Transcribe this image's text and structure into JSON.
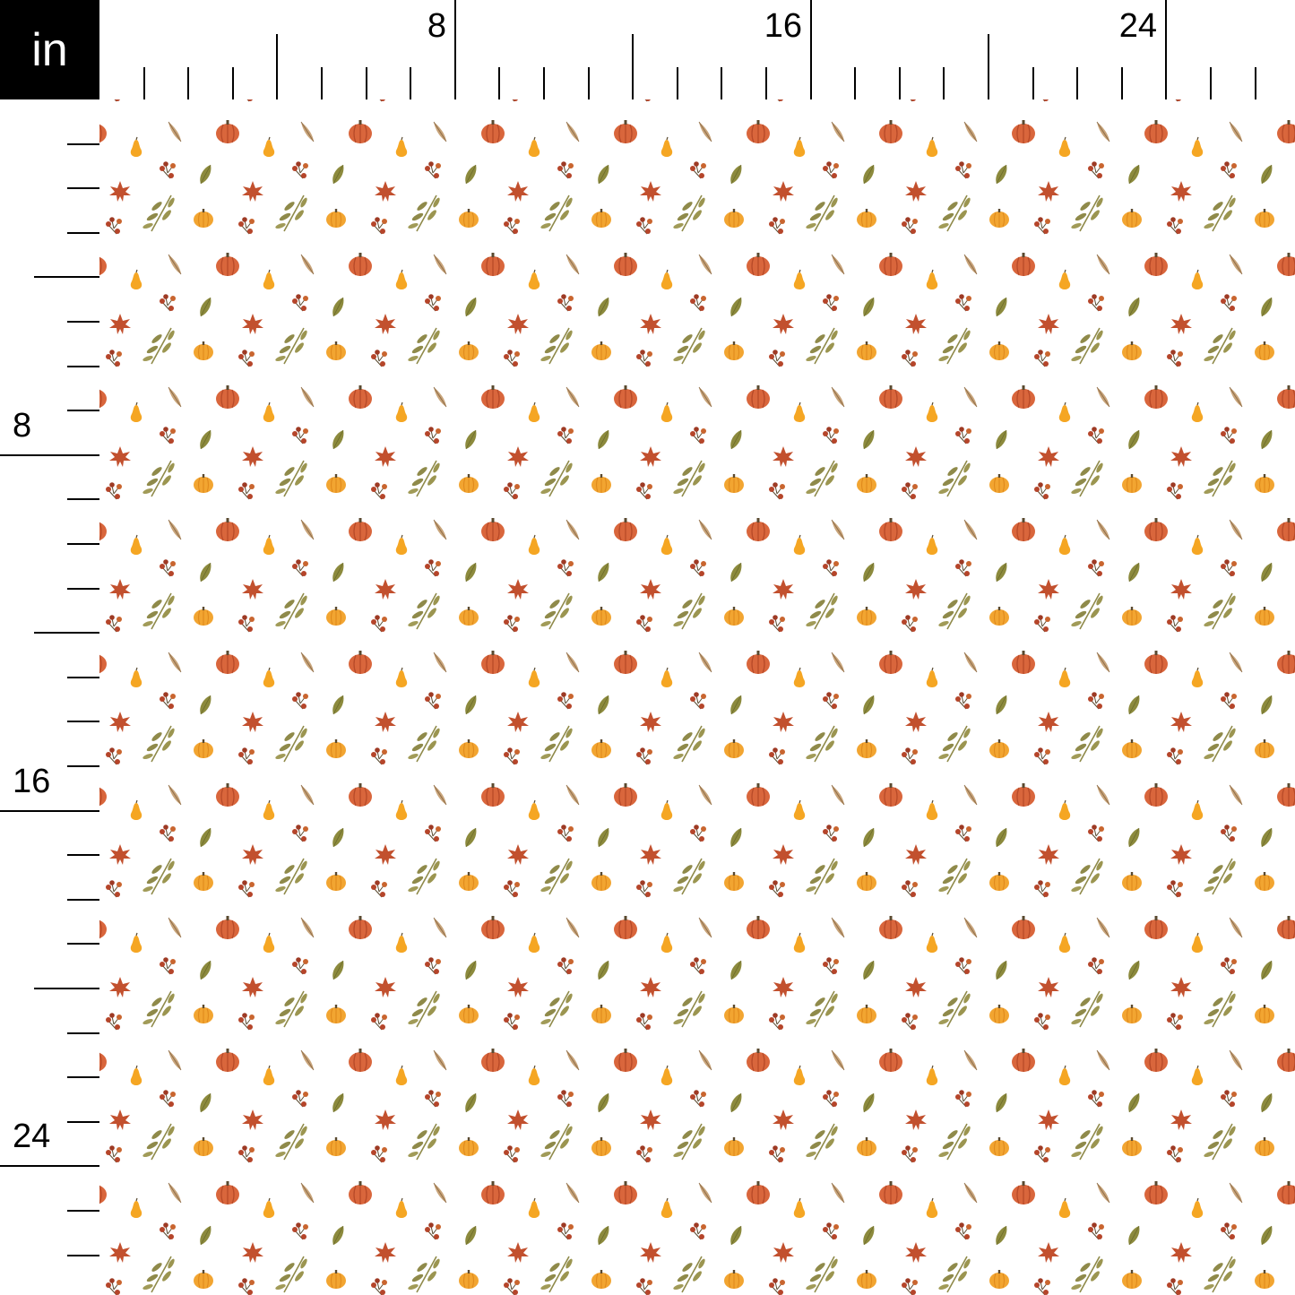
{
  "ruler": {
    "unit": "in",
    "top_labels": [
      "8",
      "16",
      "24"
    ],
    "left_labels": [
      "8",
      "16",
      "24"
    ]
  },
  "pattern": {
    "background": "#ffffff",
    "motifs": [
      "pumpkin-icon",
      "pear-icon",
      "feather-leaf-icon",
      "berry-sprig-icon",
      "olive-leaf-icon",
      "maple-leaf-icon",
      "twig-icon",
      "small-pumpkin-icon"
    ],
    "colors": {
      "pumpkin": "#d9663c",
      "pumpkin_dark": "#b84a28",
      "small_pumpkin": "#f2a531",
      "pear": "#f5a623",
      "olive_leaf": "#8c8a3d",
      "feather_leaf": "#c8a47a",
      "maple_leaf": "#c2502e",
      "berry": "#b5452a",
      "twig": "#8f8a4a",
      "stem": "#5a4a30"
    }
  }
}
